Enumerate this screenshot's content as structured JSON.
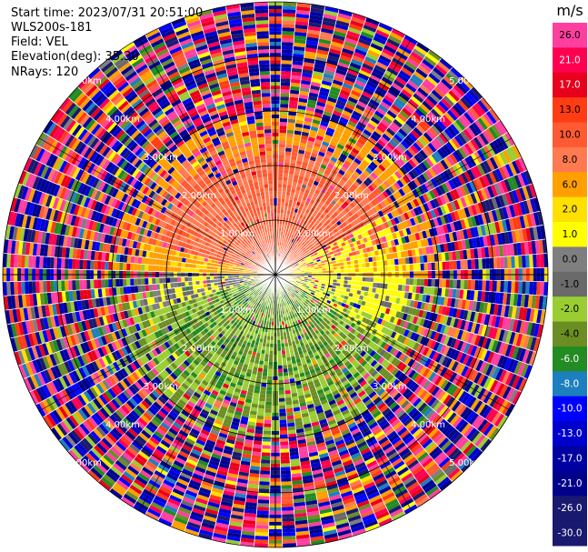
{
  "header": {
    "start_time": "Start time: 2023/07/31 20:51:00",
    "instrument": "WLS200s-181",
    "field": "Field: VEL",
    "elevation": "Elevation(deg): 35.30",
    "nrays": "NRays: 120"
  },
  "chart_data": {
    "type": "heatmap",
    "projection": "polar-ppi",
    "nrays": 120,
    "range_rings_km": [
      1.0,
      2.0,
      3.0,
      4.0,
      5.0
    ],
    "ring_labels": [
      "1.00km",
      "2.00km",
      "3.00km",
      "4.00km",
      "5.00km"
    ],
    "grid": true,
    "colorbar": {
      "unit": "m/s",
      "placement": "right",
      "ticks": [
        26.0,
        21.0,
        17.0,
        13.0,
        10.0,
        8.0,
        6.0,
        2.0,
        1.0,
        0.0,
        -1.0,
        -2.0,
        -4.0,
        -6.0,
        -8.0,
        -10.0,
        -13.0,
        -17.0,
        -21.0,
        -26.0,
        -30.0
      ],
      "tick_labels": [
        "26.0",
        "21.0",
        "17.0",
        "13.0",
        "10.0",
        "8.0",
        "6.0",
        "2.0",
        "1.0",
        "0.0",
        "-1.0",
        "-2.0",
        "-4.0",
        "-6.0",
        "-8.0",
        "-10.0",
        "-13.0",
        "-17.0",
        "-21.0",
        "-26.0",
        "-30.0"
      ],
      "colors": [
        "#ff3fa0",
        "#ff0050",
        "#e8001c",
        "#ff3c14",
        "#ff5a32",
        "#ff7a50",
        "#ffa000",
        "#ffe000",
        "#ffff00",
        "#7f7f7f",
        "#6a6a6a",
        "#9acd32",
        "#6b8e23",
        "#228b22",
        "#1e7fbf",
        "#0000ff",
        "#0000cd",
        "#0000a0",
        "#00008b",
        "#191970",
        "#191970"
      ]
    }
  }
}
